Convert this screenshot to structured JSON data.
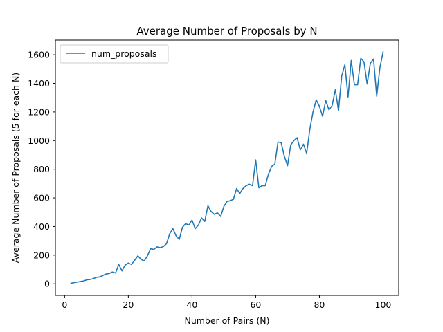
{
  "chart_data": {
    "type": "line",
    "title": "Average Number of Proposals by N",
    "xlabel": "Number of Pairs (N)",
    "ylabel": "Average Number of Proposals (5 for each N)",
    "xlim": [
      -2.9,
      104.9
    ],
    "ylim": [
      -81,
      1702
    ],
    "xticks": [
      0,
      20,
      40,
      60,
      80,
      100
    ],
    "yticks": [
      0,
      200,
      400,
      600,
      800,
      1000,
      1200,
      1400,
      1600
    ],
    "grid": false,
    "legend_position": "upper-left",
    "series": [
      {
        "name": "num_proposals",
        "color": "#1f77b4",
        "x": [
          2,
          3,
          4,
          5,
          6,
          7,
          8,
          9,
          10,
          11,
          12,
          13,
          14,
          15,
          16,
          17,
          18,
          19,
          20,
          21,
          22,
          23,
          24,
          25,
          26,
          27,
          28,
          29,
          30,
          31,
          32,
          33,
          34,
          35,
          36,
          37,
          38,
          39,
          40,
          41,
          42,
          43,
          44,
          45,
          46,
          47,
          48,
          49,
          50,
          51,
          52,
          53,
          54,
          55,
          56,
          57,
          58,
          59,
          60,
          61,
          62,
          63,
          64,
          65,
          66,
          67,
          68,
          69,
          70,
          71,
          72,
          73,
          74,
          75,
          76,
          77,
          78,
          79,
          80,
          81,
          82,
          83,
          84,
          85,
          86,
          87,
          88,
          89,
          90,
          91,
          92,
          93,
          94,
          95,
          96,
          97,
          98,
          99,
          100
        ],
        "values": [
          4,
          8,
          12,
          16,
          20,
          28,
          30,
          36,
          45,
          48,
          58,
          68,
          72,
          82,
          75,
          135,
          90,
          130,
          145,
          135,
          165,
          195,
          170,
          160,
          195,
          245,
          240,
          258,
          252,
          260,
          280,
          350,
          385,
          335,
          310,
          395,
          420,
          410,
          445,
          385,
          410,
          460,
          435,
          545,
          505,
          485,
          495,
          470,
          540,
          575,
          580,
          590,
          665,
          630,
          665,
          685,
          695,
          685,
          865,
          670,
          685,
          685,
          765,
          820,
          835,
          990,
          985,
          890,
          825,
          970,
          1000,
          1020,
          935,
          975,
          910,
          1080,
          1200,
          1285,
          1240,
          1170,
          1280,
          1215,
          1245,
          1355,
          1210,
          1450,
          1530,
          1305,
          1560,
          1390,
          1390,
          1575,
          1550,
          1395,
          1540,
          1570,
          1310,
          1510,
          1620
        ]
      }
    ]
  }
}
